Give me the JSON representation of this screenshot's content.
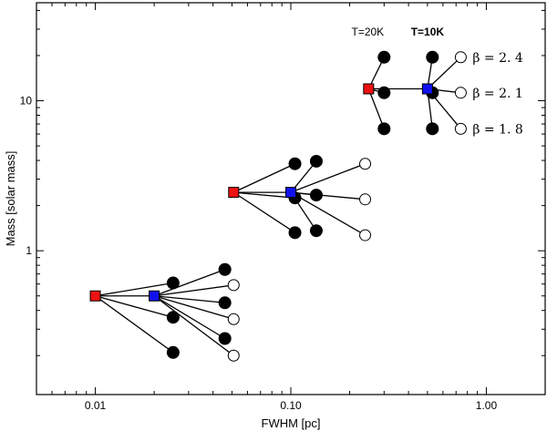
{
  "chart_data": {
    "type": "scatter",
    "title": "",
    "xlabel": "FWHM [pc]",
    "ylabel": "Mass [solar mass]",
    "xscale": "log",
    "yscale": "log",
    "xlim": [
      0.005,
      2.0
    ],
    "ylim": [
      0.11,
      45
    ],
    "x_ticks": [
      {
        "value": 0.01,
        "label": "0.01"
      },
      {
        "value": 0.1,
        "label": "0.10"
      },
      {
        "value": 1.0,
        "label": "1.00"
      }
    ],
    "y_ticks": [
      {
        "value": 1,
        "label": "1"
      },
      {
        "value": 10,
        "label": "10"
      }
    ],
    "annotations": {
      "t20": "T=20K",
      "t10": "T=10K",
      "beta_labels": [
        "β = 2. 4",
        "β = 2. 1",
        "β = 1. 8"
      ]
    },
    "colors": {
      "t20": "#ee1111",
      "t10": "#1111ee",
      "filled": "#000000",
      "open": "#ffffff"
    },
    "groups": [
      {
        "t20": {
          "x": 0.01,
          "y": 0.5
        },
        "t10": {
          "x": 0.02,
          "y": 0.5
        },
        "filled": [
          {
            "x": 0.025,
            "y": 0.61
          },
          {
            "x": 0.025,
            "y": 0.36
          },
          {
            "x": 0.025,
            "y": 0.21
          },
          {
            "x": 0.046,
            "y": 0.75
          },
          {
            "x": 0.046,
            "y": 0.45
          },
          {
            "x": 0.046,
            "y": 0.26
          }
        ],
        "open": [
          {
            "x": 0.051,
            "y": 0.59
          },
          {
            "x": 0.051,
            "y": 0.35
          },
          {
            "x": 0.051,
            "y": 0.2
          }
        ]
      },
      {
        "t20": {
          "x": 0.051,
          "y": 2.45
        },
        "t10": {
          "x": 0.1,
          "y": 2.45
        },
        "filled": [
          {
            "x": 0.105,
            "y": 3.8
          },
          {
            "x": 0.105,
            "y": 2.25
          },
          {
            "x": 0.105,
            "y": 1.32
          },
          {
            "x": 0.135,
            "y": 3.95
          },
          {
            "x": 0.135,
            "y": 2.35
          },
          {
            "x": 0.135,
            "y": 1.36
          }
        ],
        "open": [
          {
            "x": 0.24,
            "y": 3.8
          },
          {
            "x": 0.24,
            "y": 2.2
          },
          {
            "x": 0.24,
            "y": 1.27
          }
        ]
      },
      {
        "t20": {
          "x": 0.25,
          "y": 12.0
        },
        "t10": {
          "x": 0.5,
          "y": 12.0
        },
        "filled": [
          {
            "x": 0.3,
            "y": 19.5
          },
          {
            "x": 0.3,
            "y": 11.3
          },
          {
            "x": 0.3,
            "y": 6.5
          },
          {
            "x": 0.53,
            "y": 19.5
          },
          {
            "x": 0.53,
            "y": 11.3
          },
          {
            "x": 0.53,
            "y": 6.5
          }
        ],
        "open": [
          {
            "x": 0.74,
            "y": 19.5
          },
          {
            "x": 0.74,
            "y": 11.3
          },
          {
            "x": 0.74,
            "y": 6.5
          }
        ]
      }
    ]
  }
}
